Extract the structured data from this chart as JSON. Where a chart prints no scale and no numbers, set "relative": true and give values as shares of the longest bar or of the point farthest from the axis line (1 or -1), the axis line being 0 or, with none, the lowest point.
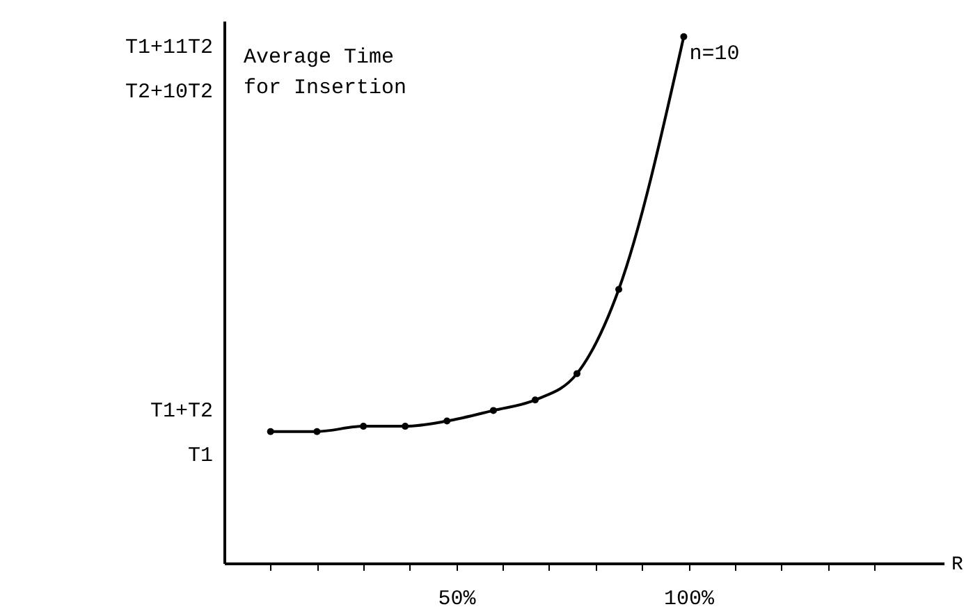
{
  "chart_data": {
    "type": "line",
    "relative": true,
    "ylabel": "Average Time\nfor Insertion",
    "xlabel": "R",
    "x": [
      10,
      20,
      30,
      39,
      48,
      58,
      67,
      76,
      85,
      99
    ],
    "series": [
      {
        "color": "#000000",
        "values": [
          0.25,
          0.25,
          0.26,
          0.26,
          0.27,
          0.29,
          0.31,
          0.36,
          0.52,
          1
        ]
      }
    ],
    "xlim": [
      0,
      155
    ],
    "xticks": [
      {
        "value": 10,
        "label": null
      },
      {
        "value": 20,
        "label": null
      },
      {
        "value": 30,
        "label": null
      },
      {
        "value": 40,
        "label": null
      },
      {
        "value": 50,
        "label": "50%"
      },
      {
        "value": 60,
        "label": null
      },
      {
        "value": 70,
        "label": null
      },
      {
        "value": 80,
        "label": null
      },
      {
        "value": 90,
        "label": null
      },
      {
        "value": 100,
        "label": "100%"
      },
      {
        "value": 110,
        "label": null
      },
      {
        "value": 120,
        "label": null
      },
      {
        "value": 130,
        "label": null
      },
      {
        "value": 140,
        "label": null
      }
    ],
    "annotations": [
      "T1+11T2",
      "T2+10T2",
      "T1+T2",
      "T1",
      {
        "text": "n=10",
        "x": 99,
        "y": 1
      }
    ],
    "marker": "circle",
    "grid": false
  }
}
